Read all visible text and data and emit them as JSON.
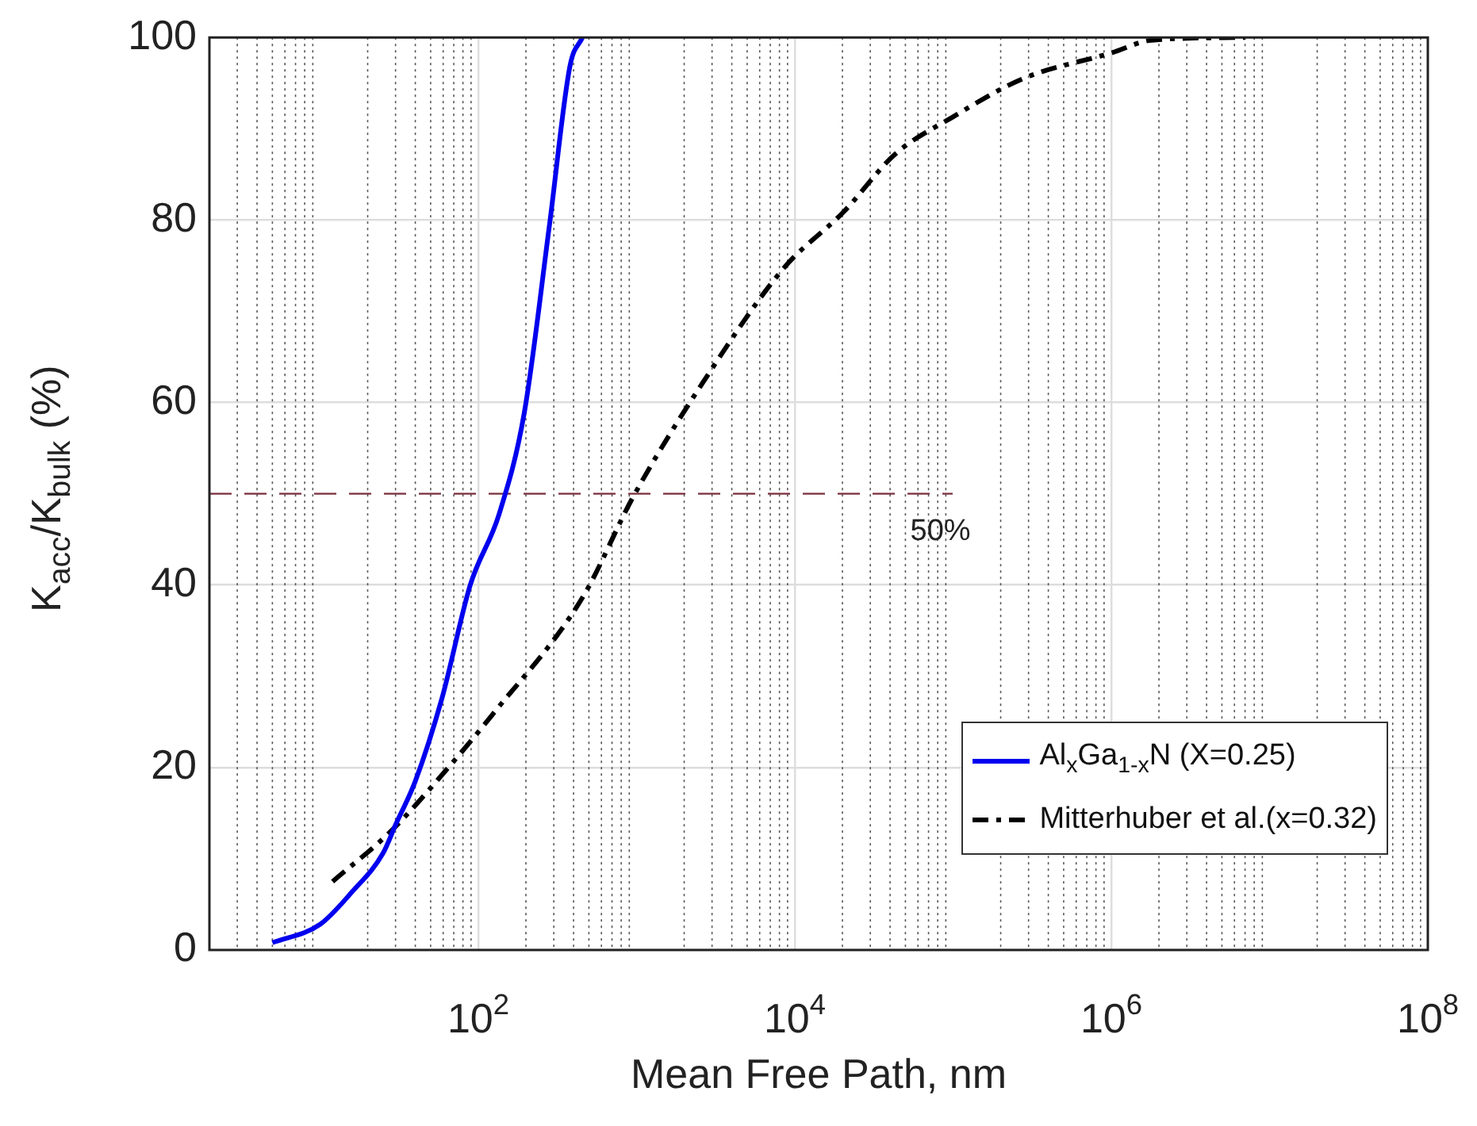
{
  "chart_data": {
    "type": "line",
    "xlabel": "Mean Free Path, nm",
    "ylabel": "K$_{acc}$/K$_{bulk}$ (%)",
    "log": "x",
    "grid": true,
    "legend": "bottom right",
    "marker": "none",
    "xlim": [
      2,
      100000000
    ],
    "xticks": [
      {
        "value": 100,
        "label": "10$^{2}$"
      },
      {
        "value": 10000,
        "label": "10$^{4}$"
      },
      {
        "value": 1000000,
        "label": "10$^{6}$"
      },
      {
        "value": 100000000,
        "label": "10$^{8}$"
      }
    ],
    "ylim": [
      0,
      100
    ],
    "yticks": [
      0,
      20,
      40,
      60,
      80,
      100
    ],
    "ref_lines": [
      {
        "axis": "y",
        "value": 50,
        "label": "50%",
        "color": "#7a2e3c",
        "line_style": "dashed"
      }
    ],
    "series": [
      {
        "name": "Al$_{x}$Ga$_{1-x}$N (X=0.25)",
        "color": "#0000ee",
        "line_style": "solid",
        "x": [
          5,
          10,
          16,
          25,
          30,
          40,
          59,
          89,
          135,
          195,
          282,
          380,
          455
        ],
        "values": [
          0.8,
          2.8,
          6.4,
          10.6,
          13.7,
          18.5,
          27.6,
          40,
          47.7,
          58.8,
          79.5,
          96.9,
          100
        ]
      },
      {
        "name": "Mitterhuber et al.(x=0.32)",
        "color": "#000000",
        "line_style": "dashed",
        "x": [
          12,
          28,
          64,
          123,
          455,
          955,
          2630,
          8500,
          20400,
          43000,
          100000,
          278000,
          1000000,
          1800000,
          7000000
        ],
        "values": [
          7.5,
          13,
          19.9,
          25.8,
          38.6,
          49.7,
          62.2,
          74.7,
          80.9,
          87.2,
          91.3,
          95.5,
          98.3,
          99.7,
          100
        ]
      }
    ]
  }
}
